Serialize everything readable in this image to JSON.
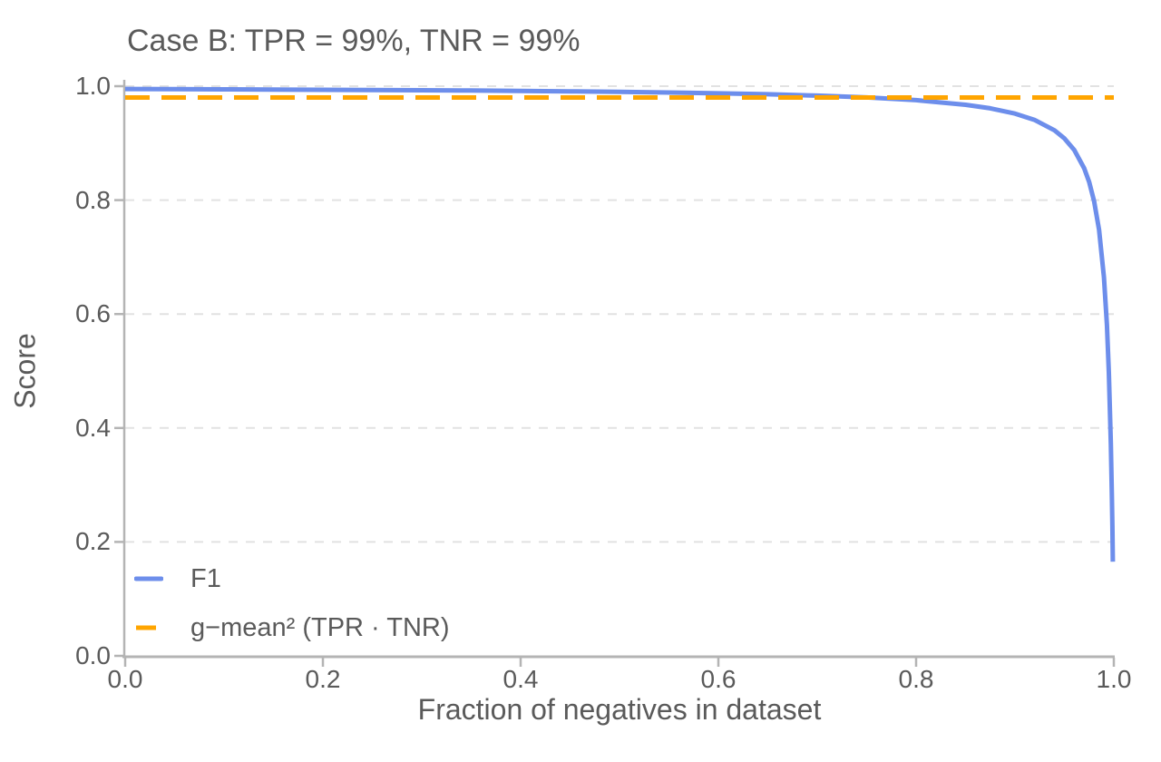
{
  "chart_data": {
    "type": "line",
    "title": "Case B: TPR = 99%, TNR = 99%",
    "xlabel": "Fraction of negatives in dataset",
    "ylabel": "Score",
    "xlim": [
      0.0,
      1.0
    ],
    "ylim": [
      0.0,
      1.0
    ],
    "x_ticks": [
      0.0,
      0.2,
      0.4,
      0.6,
      0.8,
      1.0
    ],
    "x_tick_labels": [
      "0.0",
      "0.2",
      "0.4",
      "0.6",
      "0.8",
      "1.0"
    ],
    "y_ticks": [
      0.0,
      0.2,
      0.4,
      0.6,
      0.8,
      1.0
    ],
    "y_tick_labels": [
      "0.0",
      "0.2",
      "0.4",
      "0.6",
      "0.8",
      "1.0"
    ],
    "grid": {
      "horizontal": true,
      "vertical": false,
      "style": "dashed"
    },
    "legend_position": "lower-left",
    "colors": {
      "axis": "#b4b4b4",
      "gridline": "#e2e2e2",
      "text": "#5a5a5a"
    },
    "series": [
      {
        "name": "F1",
        "color": "#6d8eeb",
        "style": "solid",
        "x": [
          0.0,
          0.05,
          0.1,
          0.15,
          0.2,
          0.25,
          0.3,
          0.35,
          0.4,
          0.45,
          0.5,
          0.55,
          0.6,
          0.65,
          0.7,
          0.75,
          0.8,
          0.85,
          0.875,
          0.9,
          0.92,
          0.94,
          0.95,
          0.96,
          0.97,
          0.975,
          0.98,
          0.985,
          0.99,
          0.993,
          0.995,
          0.997,
          0.998,
          0.9985,
          0.999
        ],
        "y": [
          0.995,
          0.9947,
          0.9944,
          0.9941,
          0.9937,
          0.9933,
          0.9928,
          0.9923,
          0.9917,
          0.9909,
          0.99,
          0.9889,
          0.9875,
          0.9858,
          0.9834,
          0.9802,
          0.9754,
          0.9674,
          0.9612,
          0.9519,
          0.9406,
          0.9224,
          0.9083,
          0.8879,
          0.8559,
          0.8319,
          0.7984,
          0.7481,
          0.6644,
          0.5809,
          0.4975,
          0.3726,
          0.2837,
          0.229,
          0.1653
        ]
      },
      {
        "name": "g−mean² (TPR · TNR)",
        "color": "#ffa500",
        "style": "dashed",
        "x": [
          0.0,
          1.0
        ],
        "y": [
          0.9801,
          0.9801
        ]
      }
    ]
  }
}
